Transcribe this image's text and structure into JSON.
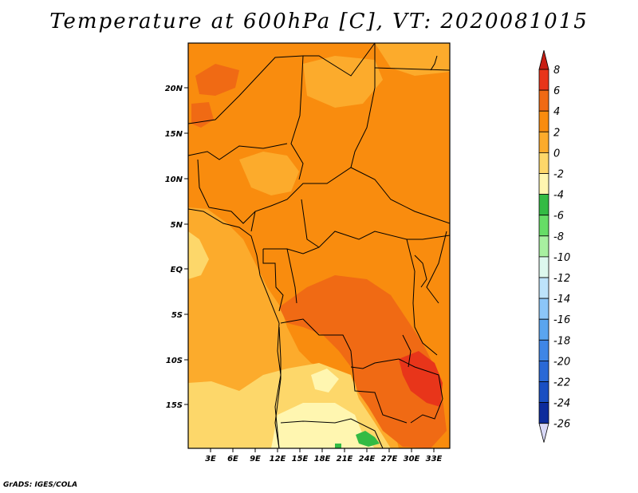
{
  "title": "Temperature at 600hPa [C], VT: 2020081015",
  "credit": "GrADS: IGES/COLA",
  "map": {
    "lat_ticks": [
      "20N",
      "15N",
      "10N",
      "5N",
      "EQ",
      "5S",
      "10S",
      "15S"
    ],
    "lon_ticks": [
      "3E",
      "6E",
      "9E",
      "12E",
      "15E",
      "18E",
      "21E",
      "24E",
      "27E",
      "30E",
      "33E"
    ]
  },
  "colorbar": {
    "labels": [
      "8",
      "6",
      "4",
      "2",
      "0",
      "-2",
      "-4",
      "-6",
      "-8",
      "-10",
      "-12",
      "-14",
      "-16",
      "-18",
      "-20",
      "-22",
      "-24",
      "-26"
    ],
    "colors": [
      "#e8351a",
      "#f06a14",
      "#f98c0e",
      "#fcab2c",
      "#fdd76a",
      "#fff6b0",
      "#33bb44",
      "#66dd66",
      "#a8f0a0",
      "#ddf8ee",
      "#bde3fb",
      "#8cc6f8",
      "#5aa5ef",
      "#3f86e6",
      "#2a69d6",
      "#1a4fc2",
      "#0d2c9c"
    ],
    "top_arrow_color": "#c81e14",
    "bottom_arrow_color": "#d8d8f6"
  },
  "palette": {
    "c_0_2": "#fcab2c",
    "c_2_4": "#f98c0e",
    "c_4_6": "#f06a14",
    "c_6_8": "#e8351a",
    "c_m2_0": "#fdd76a",
    "c_m4_m2": "#fff6b0",
    "c_m6_m4": "#33bb44",
    "c_m8_m6": "#66dd66"
  }
}
